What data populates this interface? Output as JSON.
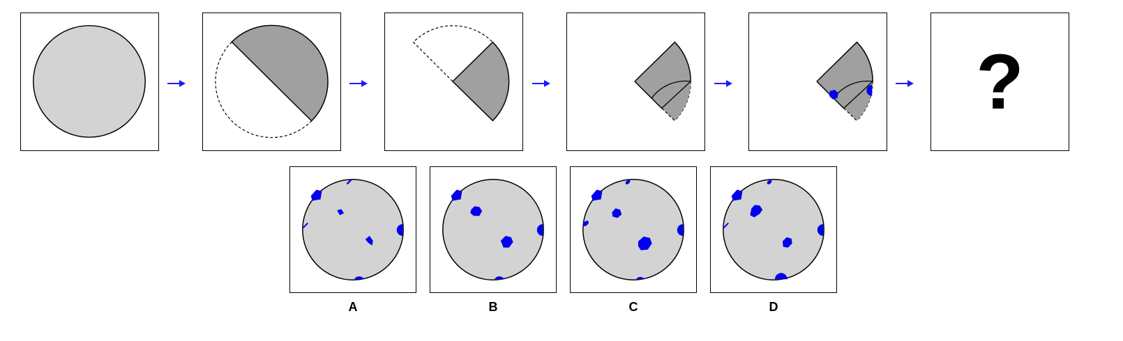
{
  "puzzle": {
    "question_mark": "?",
    "steps": [
      {
        "name": "full-circle"
      },
      {
        "name": "fold-in-half"
      },
      {
        "name": "fold-quarter"
      },
      {
        "name": "fold-eighth"
      },
      {
        "name": "punched-holes"
      },
      {
        "name": "unknown-result"
      }
    ],
    "options": [
      {
        "label": "A"
      },
      {
        "label": "B"
      },
      {
        "label": "C"
      },
      {
        "label": "D"
      }
    ]
  },
  "colors": {
    "paper": "#d3d3d3",
    "folded": "#a0a0a0",
    "hole": "#0000ee",
    "arrow": "#1a1aff",
    "outline": "#000000"
  }
}
